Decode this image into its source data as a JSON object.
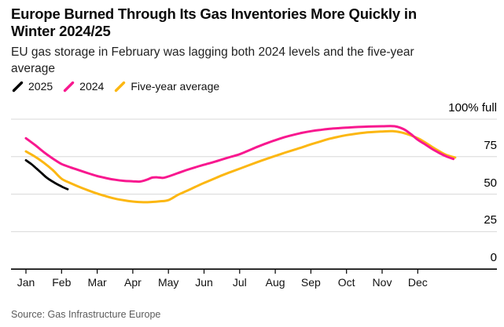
{
  "header": {
    "title_line1": "Europe Burned Through Its Gas Inventories More Quickly in",
    "title_line2": "Winter 2024/25",
    "subtitle_line1": "EU gas storage in February was lagging both 2024 levels and the five-year",
    "subtitle_line2": "average"
  },
  "source": "Source: Gas Infrastructure Europe",
  "colors": {
    "series_2025": "#000000",
    "series_2024": "#f8188f",
    "series_five_year_average": "#fcb712",
    "gridline": "#d8d8d8",
    "axis": "#000000"
  },
  "chart_data": {
    "type": "line",
    "title": "Europe Burned Through Its Gas Inventories More Quickly in Winter 2024/25",
    "subtitle": "EU gas storage in February was lagging both 2024 levels and the five-year average",
    "unit": "percent full",
    "xlabel": "",
    "ylabel": "100% full",
    "x_note": "x measured in months, 0 = Jan 1 and 12 = Dec 31",
    "x_tick_labels": [
      "Jan",
      "Feb",
      "Mar",
      "Apr",
      "May",
      "Jun",
      "Jul",
      "Aug",
      "Sep",
      "Oct",
      "Nov",
      "Dec"
    ],
    "y_axis": {
      "range": [
        0,
        100
      ],
      "grid": true,
      "labels": [
        {
          "value": 100,
          "label": "100% full"
        },
        {
          "value": 75,
          "label": "75"
        },
        {
          "value": 50,
          "label": "50"
        },
        {
          "value": 25,
          "label": "25"
        },
        {
          "value": 0,
          "label": "0"
        }
      ]
    },
    "legend_position": "top-left",
    "series": [
      {
        "name": "2025",
        "color": "#000000",
        "width": 2.8,
        "points": [
          [
            0,
            72.6
          ],
          [
            0.15,
            70.1
          ],
          [
            0.3,
            67.0
          ],
          [
            0.45,
            63.8
          ],
          [
            0.6,
            60.7
          ],
          [
            0.8,
            57.7
          ],
          [
            1.0,
            55.1
          ],
          [
            1.17,
            53.3
          ]
        ]
      },
      {
        "name": "2024",
        "color": "#f8188f",
        "width": 3,
        "points": [
          [
            0,
            87.3
          ],
          [
            0.25,
            82.9
          ],
          [
            0.5,
            78.1
          ],
          [
            0.75,
            73.8
          ],
          [
            1,
            70.1
          ],
          [
            1.25,
            67.9
          ],
          [
            1.5,
            65.9
          ],
          [
            1.75,
            63.9
          ],
          [
            2,
            62.1
          ],
          [
            2.25,
            60.7
          ],
          [
            2.5,
            59.6
          ],
          [
            2.75,
            58.9
          ],
          [
            3,
            58.6
          ],
          [
            3.2,
            58.4
          ],
          [
            3.4,
            59.7
          ],
          [
            3.55,
            61.1
          ],
          [
            3.7,
            61.2
          ],
          [
            3.85,
            60.9
          ],
          [
            4,
            61.8
          ],
          [
            4.25,
            63.9
          ],
          [
            4.5,
            66
          ],
          [
            4.75,
            67.9
          ],
          [
            5,
            69.6
          ],
          [
            5.25,
            71.3
          ],
          [
            5.5,
            73.1
          ],
          [
            5.75,
            74.9
          ],
          [
            6,
            76.6
          ],
          [
            6.25,
            79.1
          ],
          [
            6.5,
            81.6
          ],
          [
            6.75,
            83.9
          ],
          [
            7,
            86
          ],
          [
            7.25,
            87.9
          ],
          [
            7.5,
            89.5
          ],
          [
            7.75,
            90.9
          ],
          [
            8,
            92
          ],
          [
            8.25,
            92.8
          ],
          [
            8.5,
            93.5
          ],
          [
            8.75,
            94
          ],
          [
            9,
            94.4
          ],
          [
            9.5,
            95
          ],
          [
            10,
            95.3
          ],
          [
            10.35,
            95.3
          ],
          [
            10.6,
            93.4
          ],
          [
            10.8,
            90.2
          ],
          [
            11,
            86.3
          ],
          [
            11.2,
            83.3
          ],
          [
            11.4,
            80.2
          ],
          [
            11.6,
            77.5
          ],
          [
            11.8,
            75.2
          ],
          [
            12,
            73.5
          ]
        ]
      },
      {
        "name": "Five-year average",
        "color": "#fcb712",
        "width": 3,
        "points": [
          [
            0,
            78.5
          ],
          [
            0.25,
            75.1
          ],
          [
            0.5,
            71
          ],
          [
            0.75,
            66.1
          ],
          [
            1,
            60.3
          ],
          [
            1.25,
            57.4
          ],
          [
            1.5,
            54.8
          ],
          [
            1.75,
            52.5
          ],
          [
            2,
            50.4
          ],
          [
            2.25,
            48.6
          ],
          [
            2.5,
            47
          ],
          [
            2.75,
            45.9
          ],
          [
            3,
            45.1
          ],
          [
            3.3,
            44.6
          ],
          [
            3.55,
            44.8
          ],
          [
            3.75,
            45.2
          ],
          [
            4,
            46
          ],
          [
            4.25,
            49.3
          ],
          [
            4.5,
            52
          ],
          [
            4.75,
            54.8
          ],
          [
            5,
            57.5
          ],
          [
            5.25,
            60
          ],
          [
            5.5,
            62.5
          ],
          [
            5.75,
            64.8
          ],
          [
            6,
            67
          ],
          [
            6.25,
            69.2
          ],
          [
            6.5,
            71.4
          ],
          [
            6.75,
            73.5
          ],
          [
            7,
            75.5
          ],
          [
            7.25,
            77.5
          ],
          [
            7.5,
            79.4
          ],
          [
            7.75,
            81.2
          ],
          [
            8,
            83.2
          ],
          [
            8.25,
            85
          ],
          [
            8.5,
            86.8
          ],
          [
            8.75,
            88.2
          ],
          [
            9,
            89.4
          ],
          [
            9.5,
            91
          ],
          [
            10,
            91.8
          ],
          [
            10.3,
            92
          ],
          [
            10.6,
            90.8
          ],
          [
            11,
            87.3
          ],
          [
            11.2,
            84.6
          ],
          [
            11.4,
            81.6
          ],
          [
            11.6,
            78.7
          ],
          [
            11.8,
            76.2
          ],
          [
            12.05,
            74.4
          ]
        ]
      }
    ]
  }
}
